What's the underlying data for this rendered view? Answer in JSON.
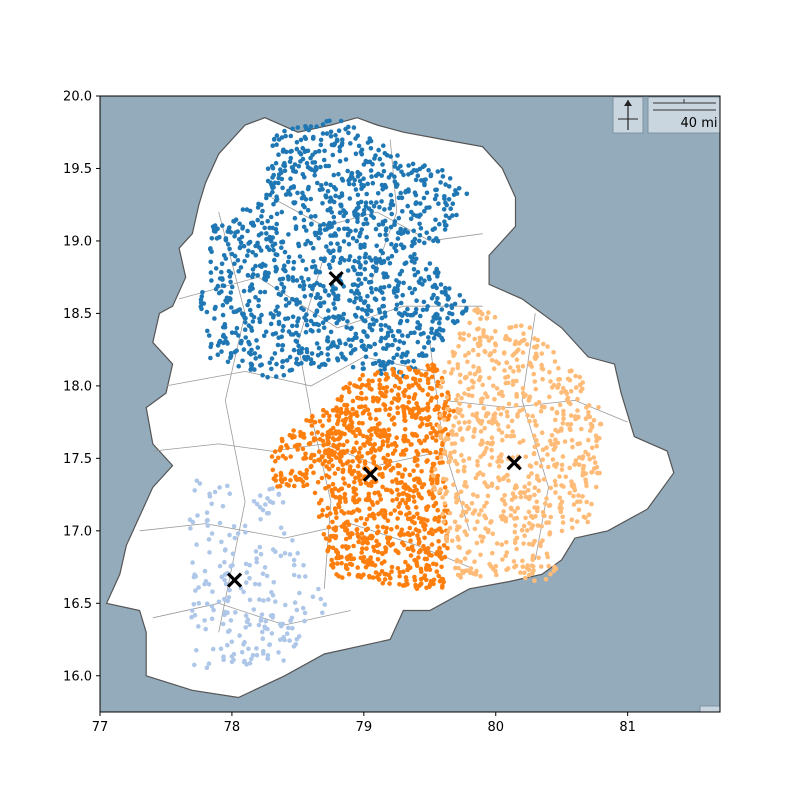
{
  "chart_data": {
    "type": "scatter",
    "title": "",
    "xlabel": "",
    "ylabel": "",
    "xlim": [
      77.0,
      81.7
    ],
    "ylim": [
      15.75,
      20.0
    ],
    "xticks": [
      77,
      78,
      79,
      80,
      81
    ],
    "yticks": [
      16.0,
      16.5,
      17.0,
      17.5,
      18.0,
      18.5,
      19.0,
      19.5,
      20.0
    ],
    "xtick_labels": [
      "77",
      "78",
      "79",
      "80",
      "81"
    ],
    "ytick_labels": [
      "16.0",
      "16.5",
      "17.0",
      "17.5",
      "18.0",
      "18.5",
      "19.0",
      "19.5",
      "20.0"
    ],
    "grid": false,
    "legend": "none",
    "background_map": {
      "water_color": "#94abbb",
      "land_color": "#ffffff",
      "border_color": "#555555",
      "compass_icon": "north-arrow-compass-icon",
      "scale_bar_label": "40 mi"
    },
    "clusters": [
      {
        "color": "#1f77b4",
        "centroid": [
          78.79,
          18.74
        ],
        "count": 1300,
        "region": [
          [
            77.75,
            18.6
          ],
          [
            77.85,
            19.1
          ],
          [
            78.25,
            19.3
          ],
          [
            78.3,
            19.75
          ],
          [
            78.8,
            19.85
          ],
          [
            79.3,
            19.6
          ],
          [
            79.7,
            19.45
          ],
          [
            79.8,
            19.3
          ],
          [
            79.5,
            18.9
          ],
          [
            79.8,
            18.55
          ],
          [
            79.5,
            18.2
          ],
          [
            79.3,
            18.05
          ],
          [
            78.8,
            18.15
          ],
          [
            78.3,
            18.05
          ],
          [
            77.8,
            18.2
          ]
        ]
      },
      {
        "color": "#ff7f0e",
        "centroid": [
          79.05,
          17.39
        ],
        "count": 1100,
        "region": [
          [
            78.3,
            17.6
          ],
          [
            78.3,
            17.3
          ],
          [
            78.6,
            17.3
          ],
          [
            78.7,
            16.95
          ],
          [
            78.75,
            16.7
          ],
          [
            79.1,
            16.6
          ],
          [
            79.6,
            16.6
          ],
          [
            79.65,
            17.0
          ],
          [
            79.6,
            17.5
          ],
          [
            79.7,
            17.85
          ],
          [
            79.55,
            18.15
          ],
          [
            79.0,
            18.1
          ],
          [
            78.6,
            17.8
          ],
          [
            78.2,
            17.5
          ]
        ]
      },
      {
        "color": "#ffbb78",
        "centroid": [
          80.14,
          17.47
        ],
        "count": 750,
        "region": [
          [
            79.55,
            18.1
          ],
          [
            79.85,
            18.55
          ],
          [
            80.2,
            18.45
          ],
          [
            80.5,
            18.2
          ],
          [
            80.8,
            17.9
          ],
          [
            80.8,
            17.4
          ],
          [
            80.7,
            17.05
          ],
          [
            80.35,
            16.95
          ],
          [
            80.55,
            16.6
          ],
          [
            80.05,
            16.7
          ],
          [
            79.7,
            16.65
          ],
          [
            79.5,
            17.4
          ],
          [
            79.6,
            17.9
          ]
        ]
      },
      {
        "color": "#aec7e8",
        "centroid": [
          78.02,
          16.66
        ],
        "count": 220,
        "region": [
          [
            77.7,
            17.4
          ],
          [
            78.0,
            17.3
          ],
          [
            78.35,
            17.3
          ],
          [
            78.5,
            16.9
          ],
          [
            78.6,
            16.7
          ],
          [
            78.75,
            16.5
          ],
          [
            78.4,
            16.1
          ],
          [
            78.05,
            16.05
          ],
          [
            77.65,
            16.05
          ],
          [
            77.7,
            16.7
          ],
          [
            77.65,
            17.0
          ]
        ]
      }
    ],
    "centroid_marker": {
      "shape": "x",
      "color": "#000000"
    }
  }
}
